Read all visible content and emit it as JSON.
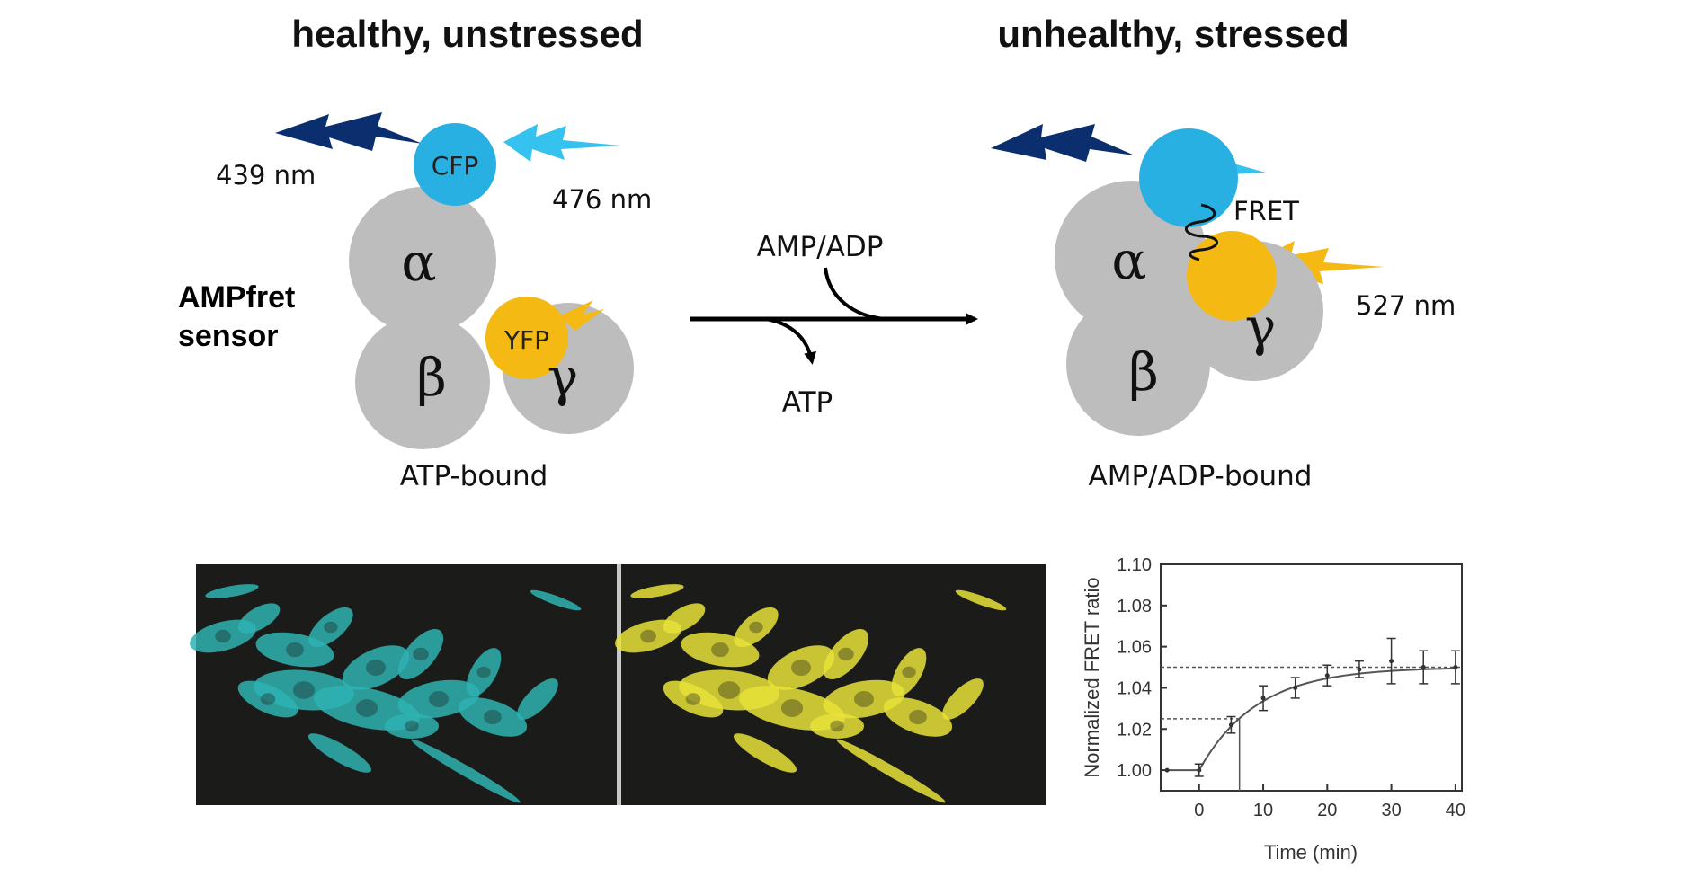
{
  "panel_titles": {
    "left": "healthy, unstressed",
    "right": "unhealthy, stressed"
  },
  "side_label": {
    "line1": "AMPfret",
    "line2": "sensor"
  },
  "left_state": {
    "excitation_wavelength": "439 nm",
    "emission_wavelength": "476 nm",
    "donor": "CFP",
    "acceptor": "YFP",
    "subunit_alpha": "α",
    "subunit_beta": "β",
    "subunit_gamma": "γ",
    "caption": "ATP-bound"
  },
  "reaction": {
    "input": "AMP/ADP",
    "output": "ATP"
  },
  "right_state": {
    "transfer_label": "FRET",
    "emission_wavelength": "527 nm",
    "subunit_alpha": "α",
    "subunit_beta": "β",
    "subunit_gamma": "γ",
    "caption": "AMP/ADP-bound"
  },
  "colors": {
    "subunit_gray": "#bdbdbd",
    "cfp_blue": "#29b0e3",
    "yfp_yellow": "#f5b914",
    "dark_flash": "#0b2e6e",
    "light_flash": "#35c2ee",
    "yellow_flash": "#f5b914",
    "micrograph_bg": "#1b1c1a",
    "cyan_cells": "#2fb3b3",
    "yellow_cells": "#e8e23a"
  },
  "micrographs": [
    {
      "channel": "cyan"
    },
    {
      "channel": "yellow"
    }
  ],
  "chart_data": {
    "type": "line",
    "xlabel": "Time (min)",
    "ylabel": "Normalized FRET ratio",
    "xlim": [
      -6,
      41
    ],
    "ylim": [
      0.99,
      1.1
    ],
    "xticks": [
      0,
      10,
      20,
      30,
      40
    ],
    "yticks": [
      1.0,
      1.02,
      1.04,
      1.06,
      1.08,
      1.1
    ],
    "ytick_labels": [
      "1.00",
      "1.02",
      "1.04",
      "1.06",
      "1.08",
      "1.10"
    ],
    "x": [
      -5,
      0,
      5,
      10,
      15,
      20,
      25,
      30,
      35,
      40
    ],
    "y": [
      1.0,
      1.0,
      1.022,
      1.035,
      1.04,
      1.046,
      1.049,
      1.053,
      1.05,
      1.05
    ],
    "err": [
      0.0,
      0.003,
      0.004,
      0.006,
      0.005,
      0.005,
      0.004,
      0.011,
      0.008,
      0.008
    ],
    "fit": {
      "baseline": 1.0,
      "plateau": 1.05,
      "t0": 0,
      "tau": 9.0
    },
    "reference_lines": {
      "plateau": 1.05,
      "half": 1.025,
      "half_time": 6.3
    },
    "grid": false
  }
}
